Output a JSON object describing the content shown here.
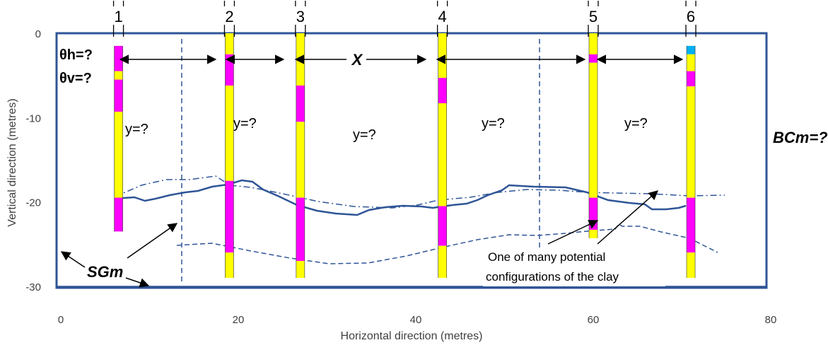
{
  "colors": {
    "frame": "#2F5597",
    "sand": "#FFFF00",
    "clay": "#FF00FF",
    "water": "#00B0F0",
    "line": "#2F5597",
    "text": "#000000"
  },
  "axes": {
    "xlabel": "Horizontal direction (metres)",
    "ylabel": "Vertical direction (metres)",
    "xticks": [
      {
        "v": 0,
        "label": "0"
      },
      {
        "v": 20,
        "label": "20"
      },
      {
        "v": 40,
        "label": "40"
      },
      {
        "v": 60,
        "label": "60"
      },
      {
        "v": 80,
        "label": "80"
      }
    ],
    "yticks": [
      {
        "v": 0,
        "label": "0"
      },
      {
        "v": -10,
        "label": "-10"
      },
      {
        "v": -20,
        "label": "-20"
      },
      {
        "v": -30,
        "label": "-30"
      }
    ],
    "xlim": [
      0,
      80
    ],
    "ylim": [
      -30,
      0
    ]
  },
  "boreholes": [
    {
      "label": "1",
      "x": 6.5,
      "bottom": -23.5,
      "segments": [
        {
          "from": -1.5,
          "to": -4.5,
          "material": "clay"
        },
        {
          "from": -4.5,
          "to": -5.5,
          "material": "sand"
        },
        {
          "from": -5.5,
          "to": -9.3,
          "material": "clay"
        },
        {
          "from": -9.3,
          "to": -19.5,
          "material": "sand"
        },
        {
          "from": -19.5,
          "to": -23.5,
          "material": "clay"
        }
      ]
    },
    {
      "label": "2",
      "x": 19,
      "bottom": -29,
      "segments": [
        {
          "from": 0,
          "to": -2.5,
          "material": "sand"
        },
        {
          "from": -2.5,
          "to": -6.2,
          "material": "clay"
        },
        {
          "from": -6.2,
          "to": -17.5,
          "material": "sand"
        },
        {
          "from": -17.5,
          "to": -26,
          "material": "clay"
        },
        {
          "from": -26,
          "to": -29,
          "material": "sand"
        }
      ]
    },
    {
      "label": "3",
      "x": 27,
      "bottom": -29,
      "segments": [
        {
          "from": 0,
          "to": -6.2,
          "material": "sand"
        },
        {
          "from": -6.2,
          "to": -10.5,
          "material": "clay"
        },
        {
          "from": -10.5,
          "to": -19.5,
          "material": "sand"
        },
        {
          "from": -19.5,
          "to": -27,
          "material": "clay"
        },
        {
          "from": -27,
          "to": -29,
          "material": "sand"
        }
      ]
    },
    {
      "label": "4",
      "x": 43,
      "bottom": -29,
      "segments": [
        {
          "from": 0,
          "to": -5.3,
          "material": "sand"
        },
        {
          "from": -5.3,
          "to": -8.3,
          "material": "clay"
        },
        {
          "from": -8.3,
          "to": -20.5,
          "material": "sand"
        },
        {
          "from": -20.5,
          "to": -25.2,
          "material": "clay"
        },
        {
          "from": -25.2,
          "to": -29,
          "material": "sand"
        }
      ]
    },
    {
      "label": "5",
      "x": 60,
      "bottom": -24.3,
      "segments": [
        {
          "from": 0,
          "to": -2.5,
          "material": "sand"
        },
        {
          "from": -2.5,
          "to": -3.5,
          "material": "clay"
        },
        {
          "from": -3.5,
          "to": -19.5,
          "material": "sand"
        },
        {
          "from": -19.5,
          "to": -23.3,
          "material": "clay"
        },
        {
          "from": -23.3,
          "to": -24.3,
          "material": "sand"
        }
      ]
    },
    {
      "label": "6",
      "x": 71,
      "bottom": -29,
      "segments": [
        {
          "from": -1.5,
          "to": -2.5,
          "material": "water"
        },
        {
          "from": -2.5,
          "to": -4.5,
          "material": "sand"
        },
        {
          "from": -4.5,
          "to": -6.3,
          "material": "clay"
        },
        {
          "from": -6.3,
          "to": -19.5,
          "material": "sand"
        },
        {
          "from": -19.5,
          "to": -26,
          "material": "clay"
        },
        {
          "from": -26,
          "to": -29,
          "material": "sand"
        }
      ]
    }
  ],
  "labels": {
    "theta_h": "θh=?",
    "theta_v": "θv=?",
    "x": "X",
    "y": "y=?",
    "bc": "BCm=?",
    "sg": "SGm",
    "clay_config": "One of many potential configurations of the clay"
  }
}
